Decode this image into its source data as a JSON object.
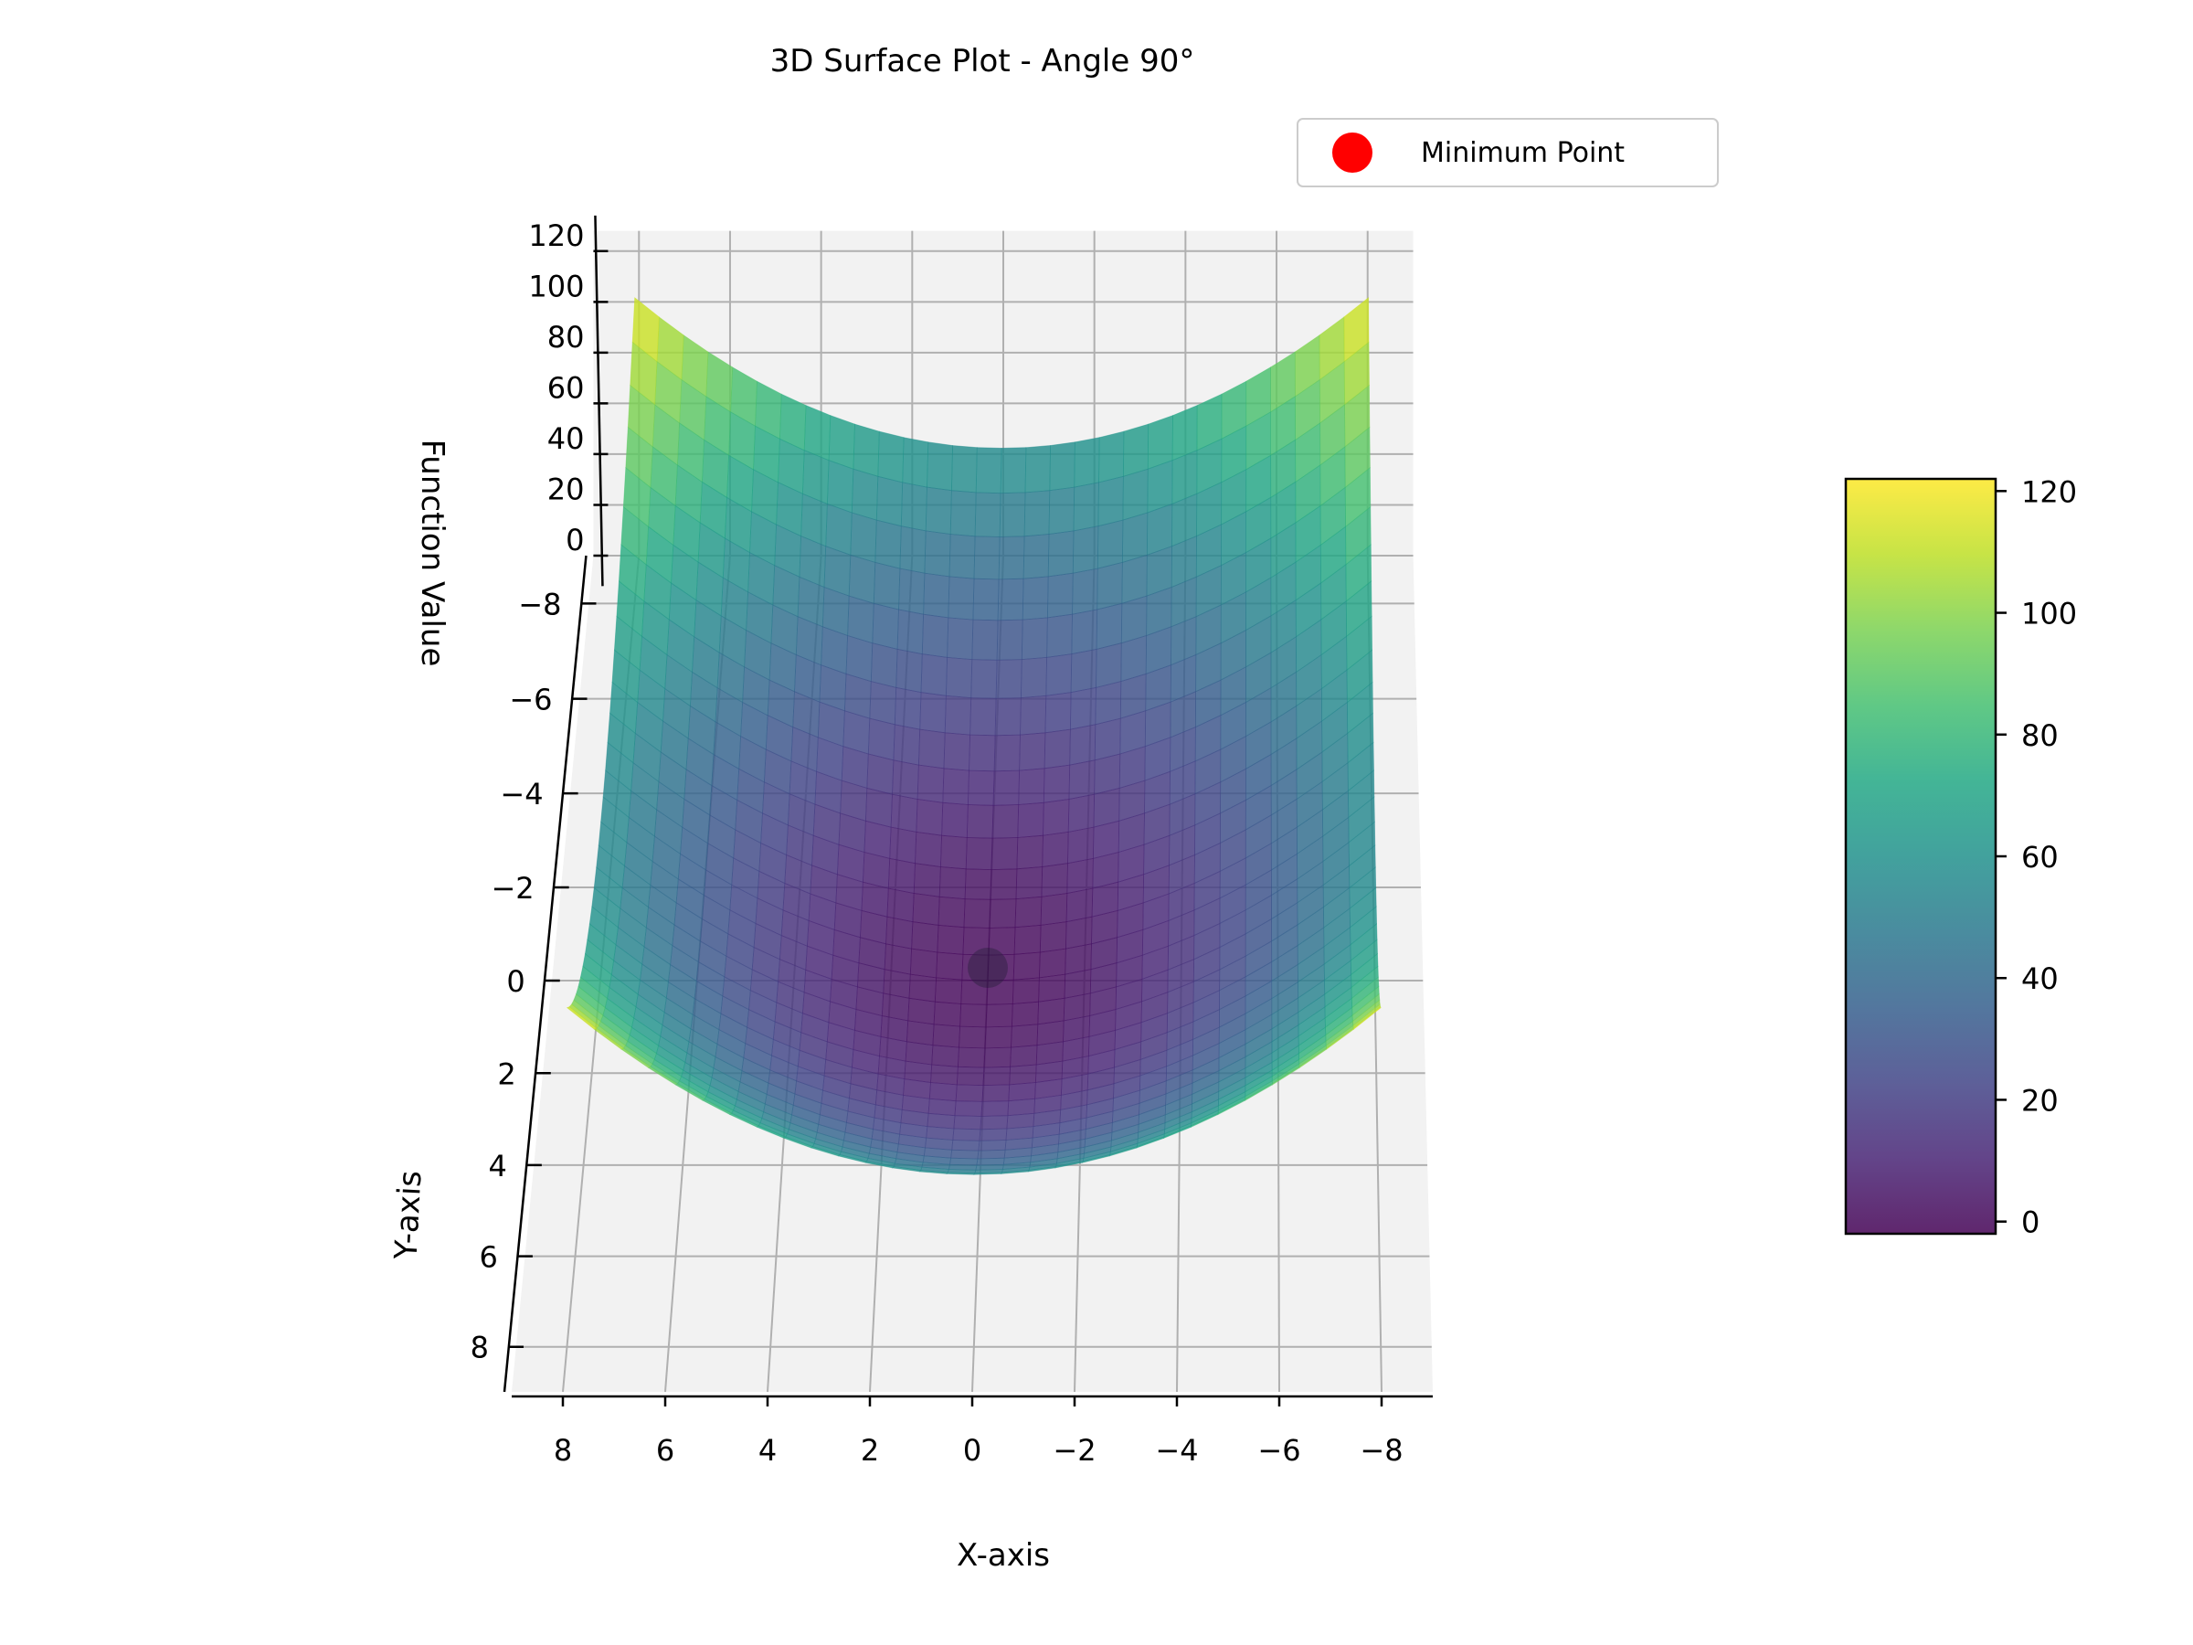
{
  "chart_data": {
    "type": "surface",
    "title": "3D Surface Plot - Angle 90°",
    "xlabel": "X-axis",
    "ylabel": "Y-axis",
    "zlabel": "Function Value",
    "function_samples": {
      "x": [
        -8,
        -6,
        -4,
        -2,
        0,
        2,
        4,
        6,
        8
      ],
      "y_minus8_row_z": [
        120,
        92,
        72,
        60,
        56,
        60,
        72,
        92,
        120
      ],
      "y_plus8_row_z": [
        120,
        92,
        72,
        60,
        56,
        60,
        72,
        92,
        120
      ]
    },
    "x_ticks": [
      "8",
      "6",
      "4",
      "2",
      "0",
      "−2",
      "−4",
      "−6",
      "−8"
    ],
    "y_ticks": [
      "−8",
      "−6",
      "−4",
      "−2",
      "0",
      "2",
      "4",
      "6",
      "8"
    ],
    "z_ticks": [
      "0",
      "20",
      "40",
      "60",
      "80",
      "100",
      "120"
    ],
    "xlim": [
      -9,
      9
    ],
    "ylim": [
      -9,
      9
    ],
    "zlim": [
      0,
      128
    ],
    "colormap": "viridis",
    "colorbar": {
      "ticks": [
        "0",
        "20",
        "40",
        "60",
        "80",
        "100",
        "120"
      ],
      "range": [
        -2,
        122
      ]
    },
    "minimum_point": {
      "x": 0,
      "y": 0,
      "z": 0,
      "color": "#ff0000"
    },
    "legend": {
      "entries": [
        "Minimum Point"
      ],
      "placement": "top-right"
    },
    "grid": true
  }
}
